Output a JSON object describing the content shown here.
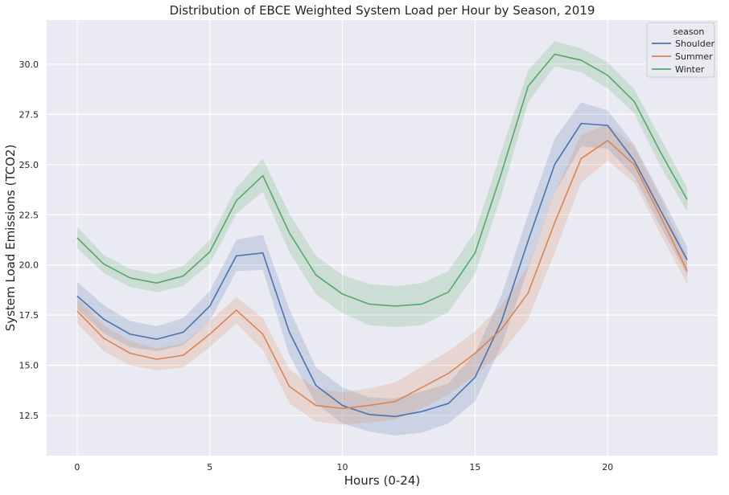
{
  "chart_data": {
    "type": "line",
    "title": "Distribution of EBCE Weighted System Load per Hour by Season, 2019",
    "xlabel": "Hours (0-24)",
    "ylabel": "System Load Emissions (TCO2)",
    "xlim": [
      -1.15,
      24.15
    ],
    "ylim": [
      10.5,
      32.2
    ],
    "x_ticks": [
      0,
      5,
      10,
      15,
      20
    ],
    "y_ticks": [
      12.5,
      15.0,
      17.5,
      20.0,
      22.5,
      25.0,
      27.5,
      30.0
    ],
    "y_tick_labels": [
      "12.5",
      "15.0",
      "17.5",
      "20.0",
      "22.5",
      "25.0",
      "27.5",
      "30.0"
    ],
    "grid": true,
    "legend": {
      "title": "season",
      "placement": "top-right"
    },
    "x": [
      0,
      1,
      2,
      3,
      4,
      5,
      6,
      7,
      8,
      9,
      10,
      11,
      12,
      13,
      14,
      15,
      16,
      17,
      18,
      19,
      20,
      21,
      22,
      23
    ],
    "series": [
      {
        "name": "Shoulder",
        "color": "#4c72b0",
        "values": [
          18.45,
          17.3,
          16.55,
          16.3,
          16.65,
          17.95,
          20.45,
          20.6,
          16.65,
          14.0,
          13.0,
          12.55,
          12.45,
          12.7,
          13.1,
          14.4,
          17.2,
          21.2,
          25.0,
          27.05,
          26.95,
          25.2,
          22.7,
          20.25
        ],
        "lower": [
          17.8,
          16.6,
          15.9,
          15.7,
          16.0,
          17.2,
          19.7,
          19.75,
          15.5,
          13.1,
          12.1,
          11.7,
          11.5,
          11.65,
          12.1,
          13.2,
          16.0,
          19.8,
          23.6,
          25.9,
          25.8,
          24.4,
          21.9,
          19.5
        ],
        "upper": [
          19.15,
          18.0,
          17.2,
          16.95,
          17.35,
          18.7,
          21.25,
          21.5,
          17.8,
          14.9,
          13.9,
          13.4,
          13.35,
          13.7,
          14.1,
          15.6,
          18.5,
          22.5,
          26.3,
          28.1,
          27.7,
          26.0,
          23.5,
          20.9
        ]
      },
      {
        "name": "Summer",
        "color": "#dd8452",
        "values": [
          17.7,
          16.35,
          15.6,
          15.3,
          15.5,
          16.55,
          17.75,
          16.55,
          13.95,
          13.0,
          12.85,
          13.0,
          13.2,
          13.9,
          14.6,
          15.6,
          16.8,
          18.6,
          22.1,
          25.3,
          26.2,
          25.0,
          22.4,
          19.7
        ],
        "lower": [
          17.1,
          15.7,
          15.0,
          14.75,
          14.9,
          15.9,
          17.1,
          15.75,
          13.1,
          12.2,
          12.05,
          12.15,
          12.3,
          12.85,
          13.55,
          14.5,
          15.6,
          17.3,
          20.6,
          24.1,
          25.2,
          24.1,
          21.5,
          19.05
        ],
        "upper": [
          18.35,
          17.0,
          16.2,
          15.85,
          16.1,
          17.2,
          18.4,
          17.35,
          14.8,
          13.85,
          13.65,
          13.85,
          14.15,
          14.95,
          15.7,
          16.7,
          18.0,
          19.9,
          23.6,
          26.5,
          27.0,
          25.9,
          23.3,
          20.4
        ]
      },
      {
        "name": "Winter",
        "color": "#55a868",
        "values": [
          21.35,
          20.05,
          19.35,
          19.1,
          19.45,
          20.65,
          23.2,
          24.45,
          21.6,
          19.5,
          18.55,
          18.05,
          17.95,
          18.05,
          18.65,
          20.6,
          24.6,
          28.9,
          30.5,
          30.2,
          29.45,
          28.15,
          25.6,
          23.25
        ],
        "lower": [
          20.85,
          19.6,
          18.9,
          18.65,
          18.95,
          20.05,
          22.55,
          23.65,
          20.65,
          18.55,
          17.6,
          17.0,
          16.9,
          17.0,
          17.65,
          19.55,
          23.5,
          28.1,
          29.9,
          29.6,
          28.8,
          27.55,
          24.9,
          22.65
        ],
        "upper": [
          21.9,
          20.5,
          19.8,
          19.55,
          19.95,
          21.25,
          23.85,
          25.3,
          22.55,
          20.45,
          19.5,
          19.05,
          18.95,
          19.1,
          19.7,
          21.65,
          25.7,
          29.7,
          31.15,
          30.8,
          30.1,
          28.75,
          26.3,
          23.85
        ]
      }
    ]
  }
}
